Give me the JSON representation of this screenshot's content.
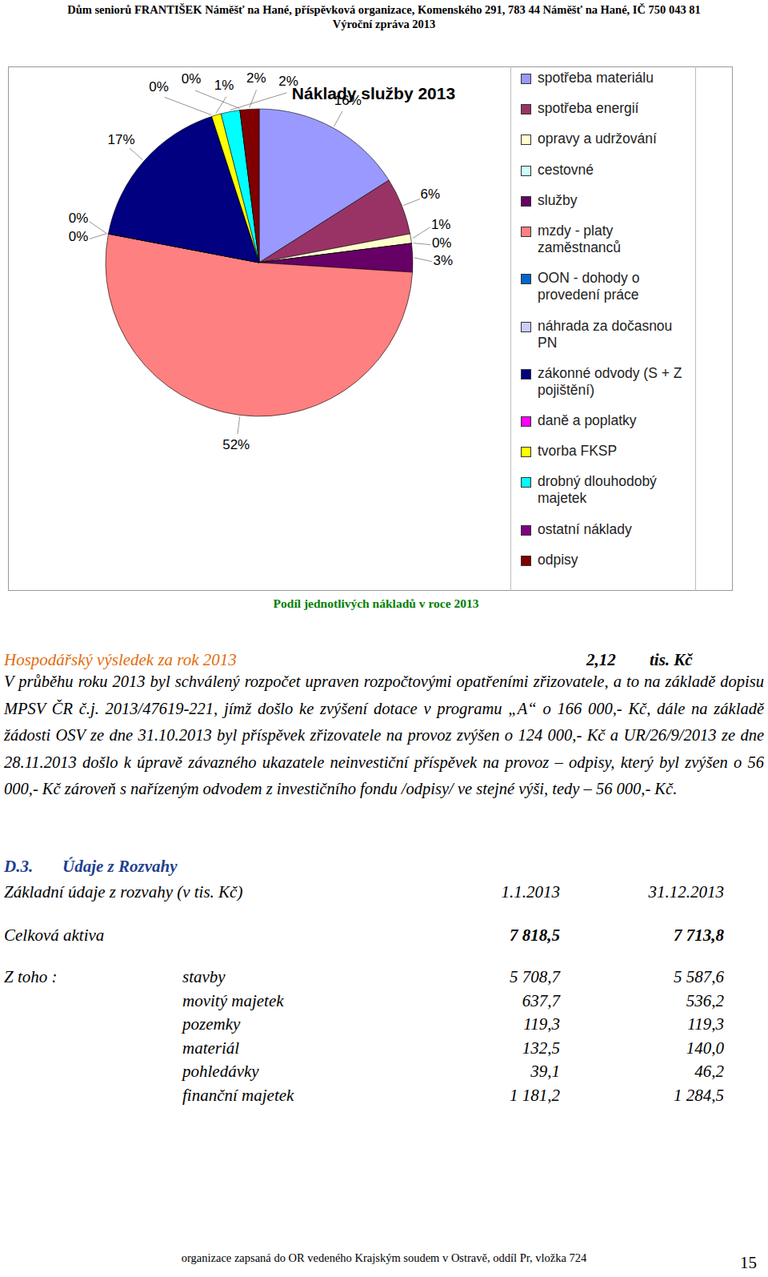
{
  "header": {
    "line1": "Dům seniorů FRANTIŠEK Náměšť na Hané, příspěvková organizace, Komenského 291, 783 44 Náměšť na Hané, IČ 750 043 81",
    "line2": "Výroční zpráva 2013"
  },
  "chart_data": {
    "type": "pie",
    "title": "Náklady služby 2013",
    "categories": [
      "spotřeba materiálu",
      "spotřeba energií",
      "opravy a udržování",
      "cestovné",
      "služby",
      "mzdy - platy zaměstnanců",
      "OON - dohody o provedení práce",
      "náhrada za dočasnou PN",
      "zákonné odvody (S + Z pojištění)",
      "daně a poplatky",
      "tvorba FKSP",
      "drobný dlouhodobý majetek",
      "ostatní náklady",
      "odpisy"
    ],
    "values": [
      16,
      6,
      1,
      0,
      3,
      52,
      0,
      0,
      17,
      0,
      1,
      2,
      0,
      2
    ],
    "value_labels": [
      "16%",
      "6%",
      "1%",
      "0%",
      "3%",
      "52%",
      "0%",
      "0%",
      "17%",
      "0%",
      "1%",
      "2%",
      "0%",
      "2%"
    ],
    "colors": [
      "#9999FF",
      "#993366",
      "#FFFFCC",
      "#CCFFFF",
      "#660066",
      "#FF8080",
      "#0066CC",
      "#CCCCFF",
      "#000080",
      "#FF00FF",
      "#FFFF00",
      "#00FFFF",
      "#800080",
      "#800000"
    ],
    "data_labels": true,
    "legend": "right"
  },
  "caption": "Podíl jednotlivých nákladů v roce 2013",
  "result": {
    "label": "Hospodářský výsledek za rok 2013",
    "value": "2,12",
    "unit": "tis. Kč"
  },
  "paragraph": "V průběhu roku 2013 byl schválený rozpočet upraven rozpočtovými opatřeními zřizovatele, a to na základě dopisu MPSV ČR č.j. 2013/47619-221, jímž došlo ke zvýšení dotace v programu „A“ o 166 000,- Kč, dále na základě žádosti OSV ze dne 31.10.2013 byl příspěvek zřizovatele na provoz zvýšen o 124 000,- Kč a UR/26/9/2013 ze dne 28.11.2013 došlo k úpravě závazného ukazatele neinvestiční příspěvek na provoz – odpisy, který byl zvýšen o 56 000,- Kč zároveň s nařízeným odvodem z investičního fondu /odpisy/ ve stejné výši, tedy – 56 000,- Kč.",
  "section": {
    "number": "D.3.",
    "title": "Údaje z Rozvahy"
  },
  "table": {
    "header": [
      "Základní údaje z rozvahy (v tis. Kč)",
      "1.1.2013",
      "31.12.2013"
    ],
    "total": {
      "label": "Celková aktiva",
      "values": [
        "7 818,5",
        "7 713,8"
      ]
    },
    "group": "Z toho :",
    "rows": [
      {
        "label": "stavby",
        "values": [
          "5 708,7",
          "5 587,6"
        ]
      },
      {
        "label": "movitý majetek",
        "values": [
          "637,7",
          "536,2"
        ]
      },
      {
        "label": "pozemky",
        "values": [
          "119,3",
          "119,3"
        ]
      },
      {
        "label": "materiál",
        "values": [
          "132,5",
          "140,0"
        ]
      },
      {
        "label": "pohledávky",
        "values": [
          "39,1",
          "46,2"
        ]
      },
      {
        "label": "finanční majetek",
        "values": [
          "1 181,2",
          "1 284,5"
        ]
      }
    ]
  },
  "footer": "organizace zapsaná do OR vedeného Krajským soudem v Ostravě, oddíl Pr, vložka 724",
  "page": "15"
}
